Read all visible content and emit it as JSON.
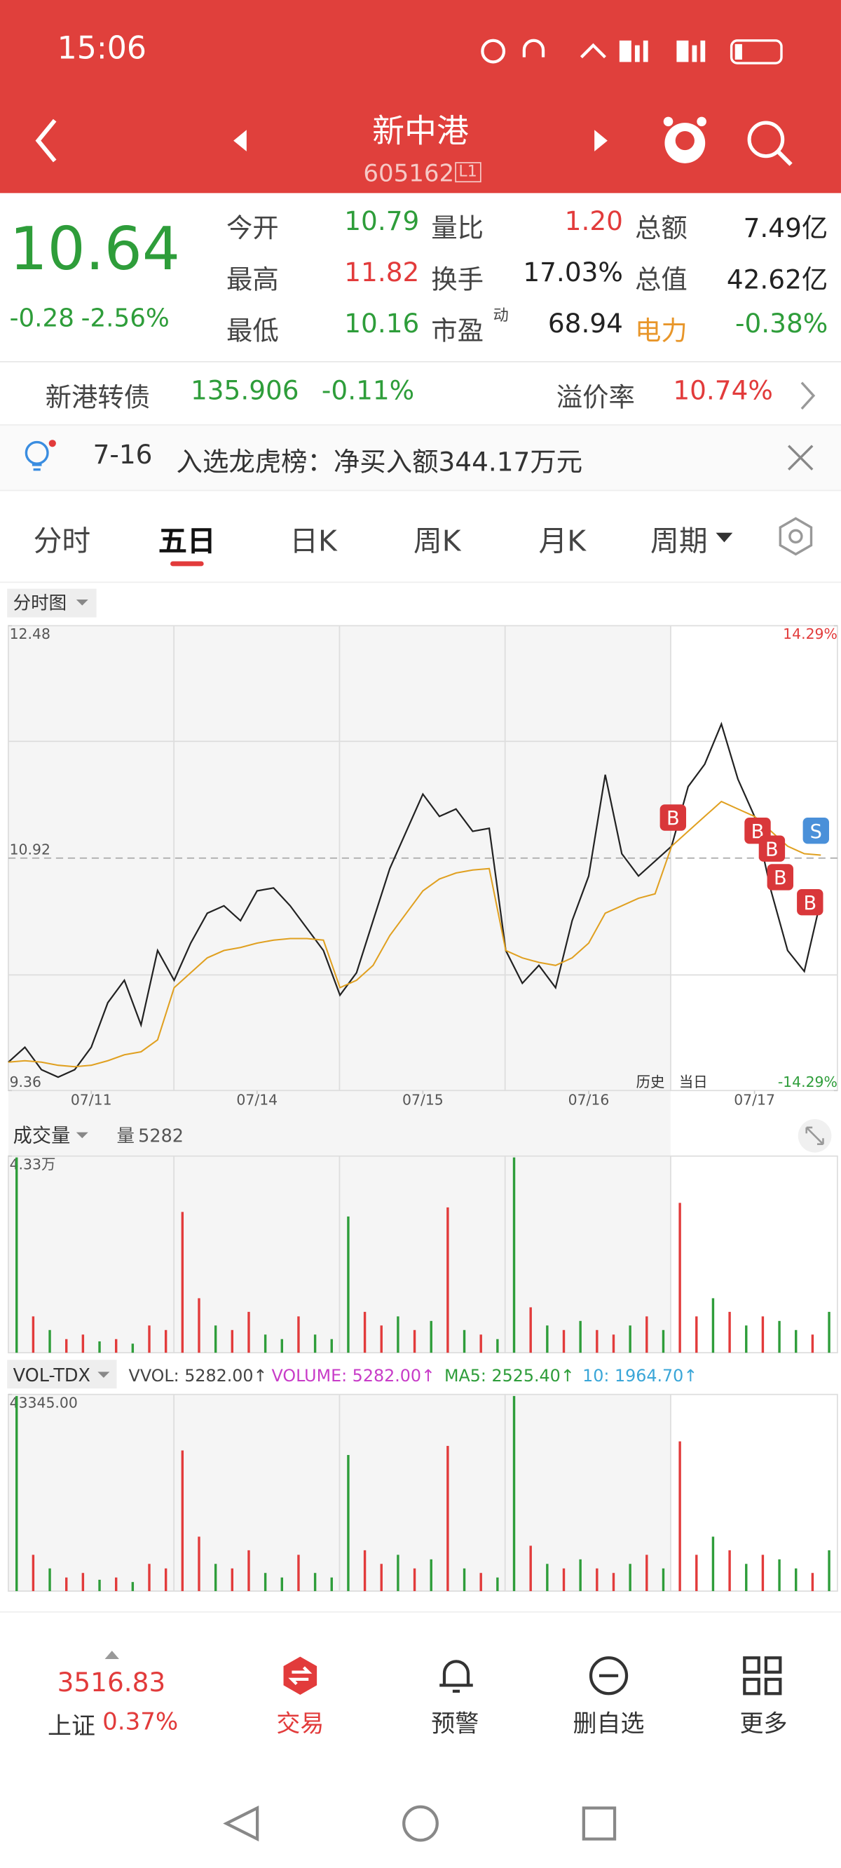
{
  "status_bar": {
    "time": "15:06"
  },
  "header": {
    "title": "新中港",
    "code": "605162",
    "badge": "L1"
  },
  "quote": {
    "price": "10.64",
    "change": "-0.28",
    "change_pct": "-2.56%",
    "fields": [
      [
        {
          "label": "今开",
          "value": "10.79"
        },
        {
          "label": "量比",
          "value": "1.20"
        },
        {
          "label": "总额",
          "value": "7.49亿"
        }
      ],
      [
        {
          "label": "最高",
          "value": "11.82"
        },
        {
          "label": "换手",
          "value": "17.03%"
        },
        {
          "label": "总值",
          "value": "42.62亿"
        }
      ],
      [
        {
          "label": "最低",
          "value": "10.16"
        },
        {
          "label": "市盈",
          "sup": "动",
          "value": "68.94"
        },
        {
          "label": "电力",
          "value": "-0.38%"
        }
      ]
    ]
  },
  "bond": {
    "name": "新港转债",
    "price": "135.906",
    "change": "-0.11%",
    "premium_label": "溢价率",
    "premium": "10.74%"
  },
  "notice": {
    "date": "7-16",
    "text": "入选龙虎榜：净买入额344.17万元"
  },
  "tabs": [
    "分时",
    "五日",
    "日K",
    "周K",
    "月K",
    "周期"
  ],
  "chart_selector": "分时图",
  "volume_header": {
    "title": "成交量",
    "label": "量",
    "value": "5282"
  },
  "indicator_header": {
    "title": "VOL-TDX",
    "items": [
      "VVOL: 5282.00↑",
      "VOLUME: 5282.00↑",
      "MA5: 2525.40↑",
      "10: 1964.70↑"
    ]
  },
  "chart_data": [
    {
      "type": "line",
      "x": [
        0,
        0.1,
        0.2,
        0.3,
        0.4,
        0.5,
        0.6,
        0.7,
        0.8,
        0.9,
        1,
        1.1,
        1.2,
        1.3,
        1.4,
        1.5,
        1.6,
        1.7,
        1.8,
        1.9,
        2,
        2.1,
        2.2,
        2.3,
        2.4,
        2.5,
        2.6,
        2.7,
        2.8,
        2.9,
        3,
        3.1,
        3.2,
        3.3,
        3.4,
        3.5,
        3.6,
        3.7,
        3.8,
        3.9,
        4,
        4.1,
        4.2,
        4.3,
        4.4,
        4.5,
        4.6,
        4.7,
        4.8,
        4.9
      ],
      "series": [
        {
          "color": "#222222",
          "values": [
            9.55,
            9.65,
            9.5,
            9.45,
            9.5,
            9.65,
            9.95,
            10.1,
            9.8,
            10.3,
            10.1,
            10.35,
            10.55,
            10.6,
            10.5,
            10.7,
            10.72,
            10.6,
            10.45,
            10.3,
            10.0,
            10.15,
            10.5,
            10.85,
            11.1,
            11.35,
            11.2,
            11.25,
            11.1,
            11.12,
            10.3,
            10.08,
            10.2,
            10.05,
            10.5,
            10.8,
            11.48,
            10.95,
            10.8,
            10.9,
            11.0,
            11.4,
            11.55,
            11.82,
            11.45,
            11.2,
            10.7,
            10.3,
            10.16,
            10.64
          ]
        },
        {
          "color": "#e0a020",
          "values": [
            9.55,
            9.56,
            9.55,
            9.53,
            9.52,
            9.53,
            9.56,
            9.6,
            9.62,
            9.7,
            10.05,
            10.15,
            10.25,
            10.3,
            10.32,
            10.35,
            10.37,
            10.38,
            10.38,
            10.37,
            10.05,
            10.1,
            10.2,
            10.4,
            10.55,
            10.7,
            10.78,
            10.82,
            10.84,
            10.85,
            10.3,
            10.25,
            10.22,
            10.2,
            10.25,
            10.35,
            10.55,
            10.6,
            10.65,
            10.68,
            11.0,
            11.1,
            11.2,
            11.3,
            11.25,
            11.2,
            11.1,
            11.0,
            10.95,
            10.94
          ]
        }
      ],
      "xlim": [
        0,
        5
      ],
      "xticks": [
        {
          "value": 0.5,
          "label": "07/11"
        },
        {
          "value": 1.5,
          "label": "07/14"
        },
        {
          "value": 2.5,
          "label": "07/15"
        },
        {
          "value": 3.5,
          "label": "07/16"
        },
        {
          "value": 4.5,
          "label": "07/17"
        }
      ],
      "ylim": [
        9.36,
        12.48
      ],
      "yticks": [
        12.48,
        10.92,
        9.36
      ],
      "y2lim": [
        -14.29,
        14.29
      ],
      "y2ticks": [
        {
          "value": 14.29,
          "label": "14.29%"
        },
        {
          "value": -14.29,
          "label": "-14.29%"
        }
      ],
      "annotations": [
        "历史",
        "当日"
      ],
      "trade_signals": [
        "B",
        "B",
        "B",
        "B",
        "B",
        "S"
      ]
    },
    {
      "type": "bar",
      "values": [
        43000,
        8000,
        5000,
        3000,
        4000,
        2500,
        3000,
        2000,
        6000,
        5000,
        31000,
        12000,
        6000,
        5000,
        9000,
        4000,
        3000,
        8000,
        4000,
        3000,
        30000,
        9000,
        6000,
        8000,
        5000,
        7000,
        32000,
        5000,
        4000,
        3000,
        43000,
        10000,
        6000,
        5000,
        7000,
        5000,
        4000,
        6000,
        8000,
        5000,
        33000,
        8000,
        12000,
        9000,
        6000,
        8000,
        7000,
        5000,
        4000,
        9000
      ],
      "colors": [
        "#2e9d3a",
        "#e23b3b",
        "#2e9d3a",
        "#e23b3b",
        "#e23b3b",
        "#2e9d3a",
        "#e23b3b",
        "#2e9d3a",
        "#e23b3b",
        "#e23b3b",
        "#e23b3b",
        "#e23b3b",
        "#2e9d3a",
        "#e23b3b",
        "#e23b3b",
        "#2e9d3a",
        "#2e9d3a",
        "#e23b3b",
        "#2e9d3a",
        "#2e9d3a",
        "#2e9d3a",
        "#e23b3b",
        "#e23b3b",
        "#2e9d3a",
        "#e23b3b",
        "#2e9d3a",
        "#e23b3b",
        "#2e9d3a",
        "#e23b3b",
        "#2e9d3a",
        "#2e9d3a",
        "#e23b3b",
        "#2e9d3a",
        "#e23b3b",
        "#2e9d3a",
        "#e23b3b",
        "#e23b3b",
        "#2e9d3a",
        "#e23b3b",
        "#2e9d3a",
        "#e23b3b",
        "#e23b3b",
        "#2e9d3a",
        "#e23b3b",
        "#2e9d3a",
        "#e23b3b",
        "#2e9d3a",
        "#2e9d3a",
        "#e23b3b",
        "#2e9d3a"
      ],
      "ylim": [
        0,
        43300
      ],
      "yticks": [
        {
          "value": 43300,
          "label": "4.33万"
        }
      ]
    },
    {
      "type": "bar",
      "values": [
        43000,
        8000,
        5000,
        3000,
        4000,
        2500,
        3000,
        2000,
        6000,
        5000,
        31000,
        12000,
        6000,
        5000,
        9000,
        4000,
        3000,
        8000,
        4000,
        3000,
        30000,
        9000,
        6000,
        8000,
        5000,
        7000,
        32000,
        5000,
        4000,
        3000,
        43000,
        10000,
        6000,
        5000,
        7000,
        5000,
        4000,
        6000,
        8000,
        5000,
        33000,
        8000,
        12000,
        9000,
        6000,
        8000,
        7000,
        5000,
        4000,
        9000
      ],
      "colors": [
        "#2e9d3a",
        "#e23b3b",
        "#2e9d3a",
        "#e23b3b",
        "#e23b3b",
        "#2e9d3a",
        "#e23b3b",
        "#2e9d3a",
        "#e23b3b",
        "#e23b3b",
        "#e23b3b",
        "#e23b3b",
        "#2e9d3a",
        "#e23b3b",
        "#e23b3b",
        "#2e9d3a",
        "#2e9d3a",
        "#e23b3b",
        "#2e9d3a",
        "#2e9d3a",
        "#2e9d3a",
        "#e23b3b",
        "#e23b3b",
        "#2e9d3a",
        "#e23b3b",
        "#2e9d3a",
        "#e23b3b",
        "#2e9d3a",
        "#e23b3b",
        "#2e9d3a",
        "#2e9d3a",
        "#e23b3b",
        "#2e9d3a",
        "#e23b3b",
        "#2e9d3a",
        "#e23b3b",
        "#e23b3b",
        "#2e9d3a",
        "#e23b3b",
        "#2e9d3a",
        "#e23b3b",
        "#e23b3b",
        "#2e9d3a",
        "#e23b3b",
        "#2e9d3a",
        "#e23b3b",
        "#2e9d3a",
        "#2e9d3a",
        "#e23b3b",
        "#2e9d3a"
      ],
      "ylim": [
        0,
        43345
      ],
      "yticks": [
        {
          "value": 43345,
          "label": "43345.00"
        }
      ]
    }
  ],
  "footer": {
    "index_value": "3516.83",
    "index_name": "上证",
    "index_change": "0.37%",
    "nav": [
      "交易",
      "预警",
      "删自选",
      "更多"
    ]
  }
}
